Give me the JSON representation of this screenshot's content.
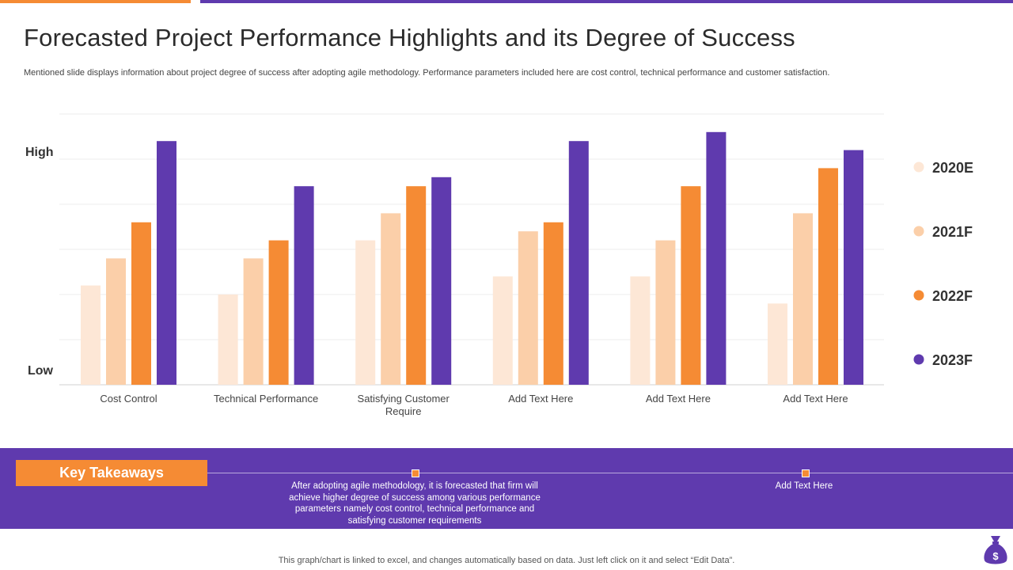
{
  "header": {
    "title": "Forecasted Project Performance Highlights and its Degree of Success",
    "subtitle": "Mentioned slide displays information about project degree of success after adopting agile methodology. Performance parameters included here are cost control, technical performance and customer satisfaction."
  },
  "chart_data": {
    "type": "bar",
    "title": "",
    "xlabel": "",
    "ylabel": "",
    "y_high_label": "High",
    "y_low_label": "Low",
    "ylim": [
      0,
      6
    ],
    "grid": true,
    "legend_position": "right",
    "categories": [
      [
        "Cost Control"
      ],
      [
        "Technical Performance"
      ],
      [
        "Satisfying Customer",
        "Require"
      ],
      [
        "Add Text Here"
      ],
      [
        "Add Text Here"
      ],
      [
        "Add Text Here"
      ]
    ],
    "series": [
      {
        "name": "2020E",
        "color": "#FDE7D6",
        "values": [
          2.2,
          2.0,
          3.2,
          2.4,
          2.4,
          1.8
        ]
      },
      {
        "name": "2021F",
        "color": "#FBCFA9",
        "values": [
          2.8,
          2.8,
          3.8,
          3.4,
          3.2,
          3.8
        ]
      },
      {
        "name": "2022F",
        "color": "#F58B34",
        "values": [
          3.6,
          3.2,
          4.4,
          3.6,
          4.4,
          4.8
        ]
      },
      {
        "name": "2023F",
        "color": "#5F3AAE",
        "values": [
          5.4,
          4.4,
          4.6,
          5.4,
          5.6,
          5.2
        ]
      }
    ]
  },
  "takeaways": {
    "label": "Key Takeaways",
    "text_1": "After  adopting agile methodology, it is forecasted that firm will achieve higher degree of success among various performance parameters namely cost control, technical performance and satisfying customer requirements",
    "text_2": "Add Text Here"
  },
  "footer": {
    "note": "This graph/chart is linked to excel,  and changes automatically based on data. Just left click on it and select “Edit Data”."
  },
  "colors": {
    "accent_orange": "#F58B34",
    "accent_purple": "#5F3AAE"
  },
  "icons": {
    "corner": "money-bag-icon"
  }
}
